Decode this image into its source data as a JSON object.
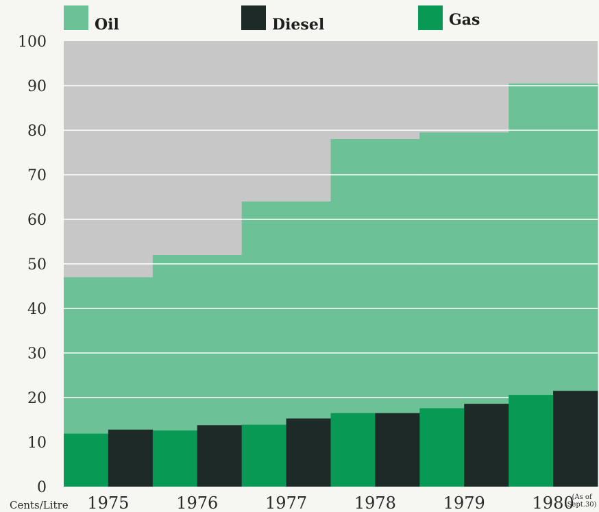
{
  "chart_data": {
    "type": "bar",
    "ylabel": "Cents/Litre",
    "ylim": [
      0,
      100
    ],
    "yticks": [
      "0",
      "10",
      "20",
      "30",
      "40",
      "50",
      "60",
      "70",
      "80",
      "90",
      "100"
    ],
    "categories": [
      "1975",
      "1976",
      "1977",
      "1978",
      "1979",
      "1980"
    ],
    "last_category_note": [
      "(As of",
      "Sept.30)"
    ],
    "series": [
      {
        "name": "Oil",
        "color": "#6cc196",
        "render": "step-area",
        "values": [
          47,
          52,
          64,
          78,
          79.5,
          90.5
        ]
      },
      {
        "name": "Diesel",
        "color": "#1e2a28",
        "render": "bar",
        "values": [
          12.8,
          13.8,
          15.3,
          16.5,
          18.6,
          21.5
        ]
      },
      {
        "name": "Gas",
        "color": "#089a55",
        "render": "bar",
        "values": [
          11.9,
          12.6,
          13.9,
          16.5,
          17.6,
          20.6
        ]
      }
    ],
    "legend_order": [
      "Oil",
      "Diesel",
      "Gas"
    ],
    "legend_position": "top",
    "background_color": "#c7c7c7",
    "grid": true,
    "grid_color": "#ffffff"
  }
}
